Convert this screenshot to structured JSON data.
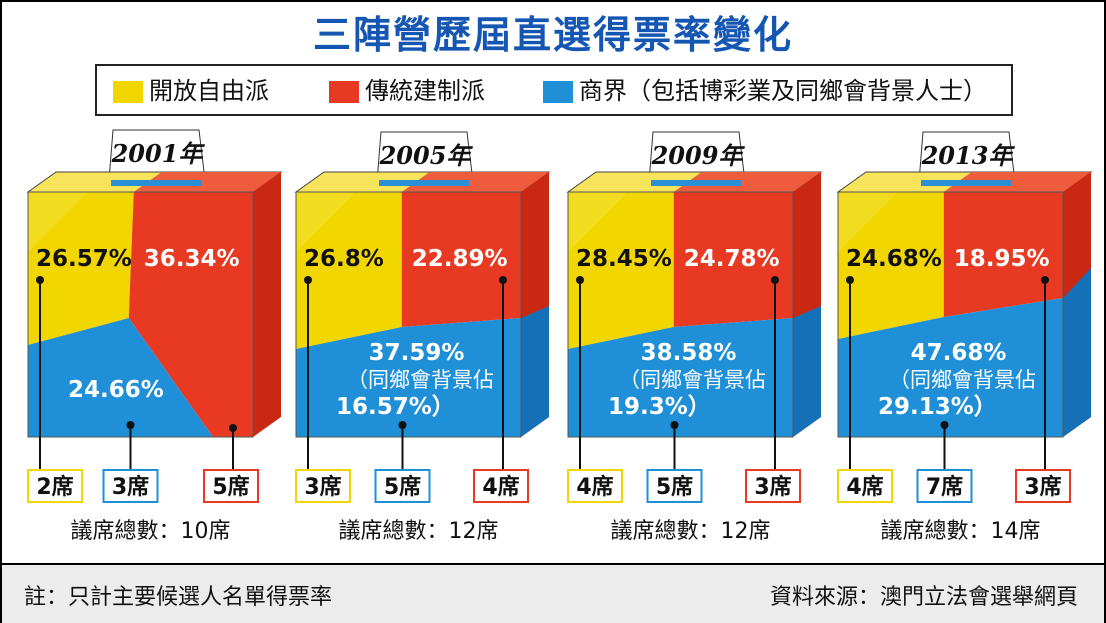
{
  "title": "三陣營歷屆直選得票率變化",
  "legend": [
    {
      "label": "開放自由派",
      "color": "#f2d600"
    },
    {
      "label": "傳統建制派",
      "color": "#e83a22"
    },
    {
      "label": "商界（包括博彩業及同鄉會背景人士）",
      "color": "#1f8fd8"
    }
  ],
  "chart_data": [
    {
      "type": "box-pie",
      "year": "2001年",
      "segments": [
        {
          "series": "開放自由派",
          "value_label": "26.57%",
          "value": 26.57,
          "seats": "2席"
        },
        {
          "series": "商界（包括博彩業及同鄉會背景人士）",
          "value_label": "24.66%",
          "value": 24.66,
          "seats": "3席"
        },
        {
          "series": "傳統建制派",
          "value_label": "36.34%",
          "value": 36.34,
          "seats": "5席"
        }
      ],
      "total": "議席總數：10席"
    },
    {
      "type": "box-pie",
      "year": "2005年",
      "segments": [
        {
          "series": "開放自由派",
          "value_label": "26.8%",
          "value": 26.8,
          "seats": "3席"
        },
        {
          "series": "商界（包括博彩業及同鄉會背景人士）",
          "value_label": "37.59%",
          "value": 37.59,
          "sub_lines": [
            "（同鄉會背景佔",
            "16.57%）"
          ],
          "seats": "5席"
        },
        {
          "series": "傳統建制派",
          "value_label": "22.89%",
          "value": 22.89,
          "seats": "4席"
        }
      ],
      "total": "議席總數：12席"
    },
    {
      "type": "box-pie",
      "year": "2009年",
      "segments": [
        {
          "series": "開放自由派",
          "value_label": "28.45%",
          "value": 28.45,
          "seats": "4席"
        },
        {
          "series": "商界（包括博彩業及同鄉會背景人士）",
          "value_label": "38.58%",
          "value": 38.58,
          "sub_lines": [
            "（同鄉會背景佔",
            "19.3%）"
          ],
          "seats": "5席"
        },
        {
          "series": "傳統建制派",
          "value_label": "24.78%",
          "value": 24.78,
          "seats": "3席"
        }
      ],
      "total": "議席總數：12席"
    },
    {
      "type": "box-pie",
      "year": "2013年",
      "segments": [
        {
          "series": "開放自由派",
          "value_label": "24.68%",
          "value": 24.68,
          "seats": "4席"
        },
        {
          "series": "商界（包括博彩業及同鄉會背景人士）",
          "value_label": "47.68%",
          "value": 47.68,
          "sub_lines": [
            "（同鄉會背景佔",
            "29.13%）"
          ],
          "seats": "7席"
        },
        {
          "series": "傳統建制派",
          "value_label": "18.95%",
          "value": 18.95,
          "seats": "3席"
        }
      ],
      "total": "議席總數：14席"
    }
  ],
  "footer": {
    "note": "註：只計主要候選人名單得票率",
    "source": "資料來源：澳門立法會選舉網頁"
  }
}
